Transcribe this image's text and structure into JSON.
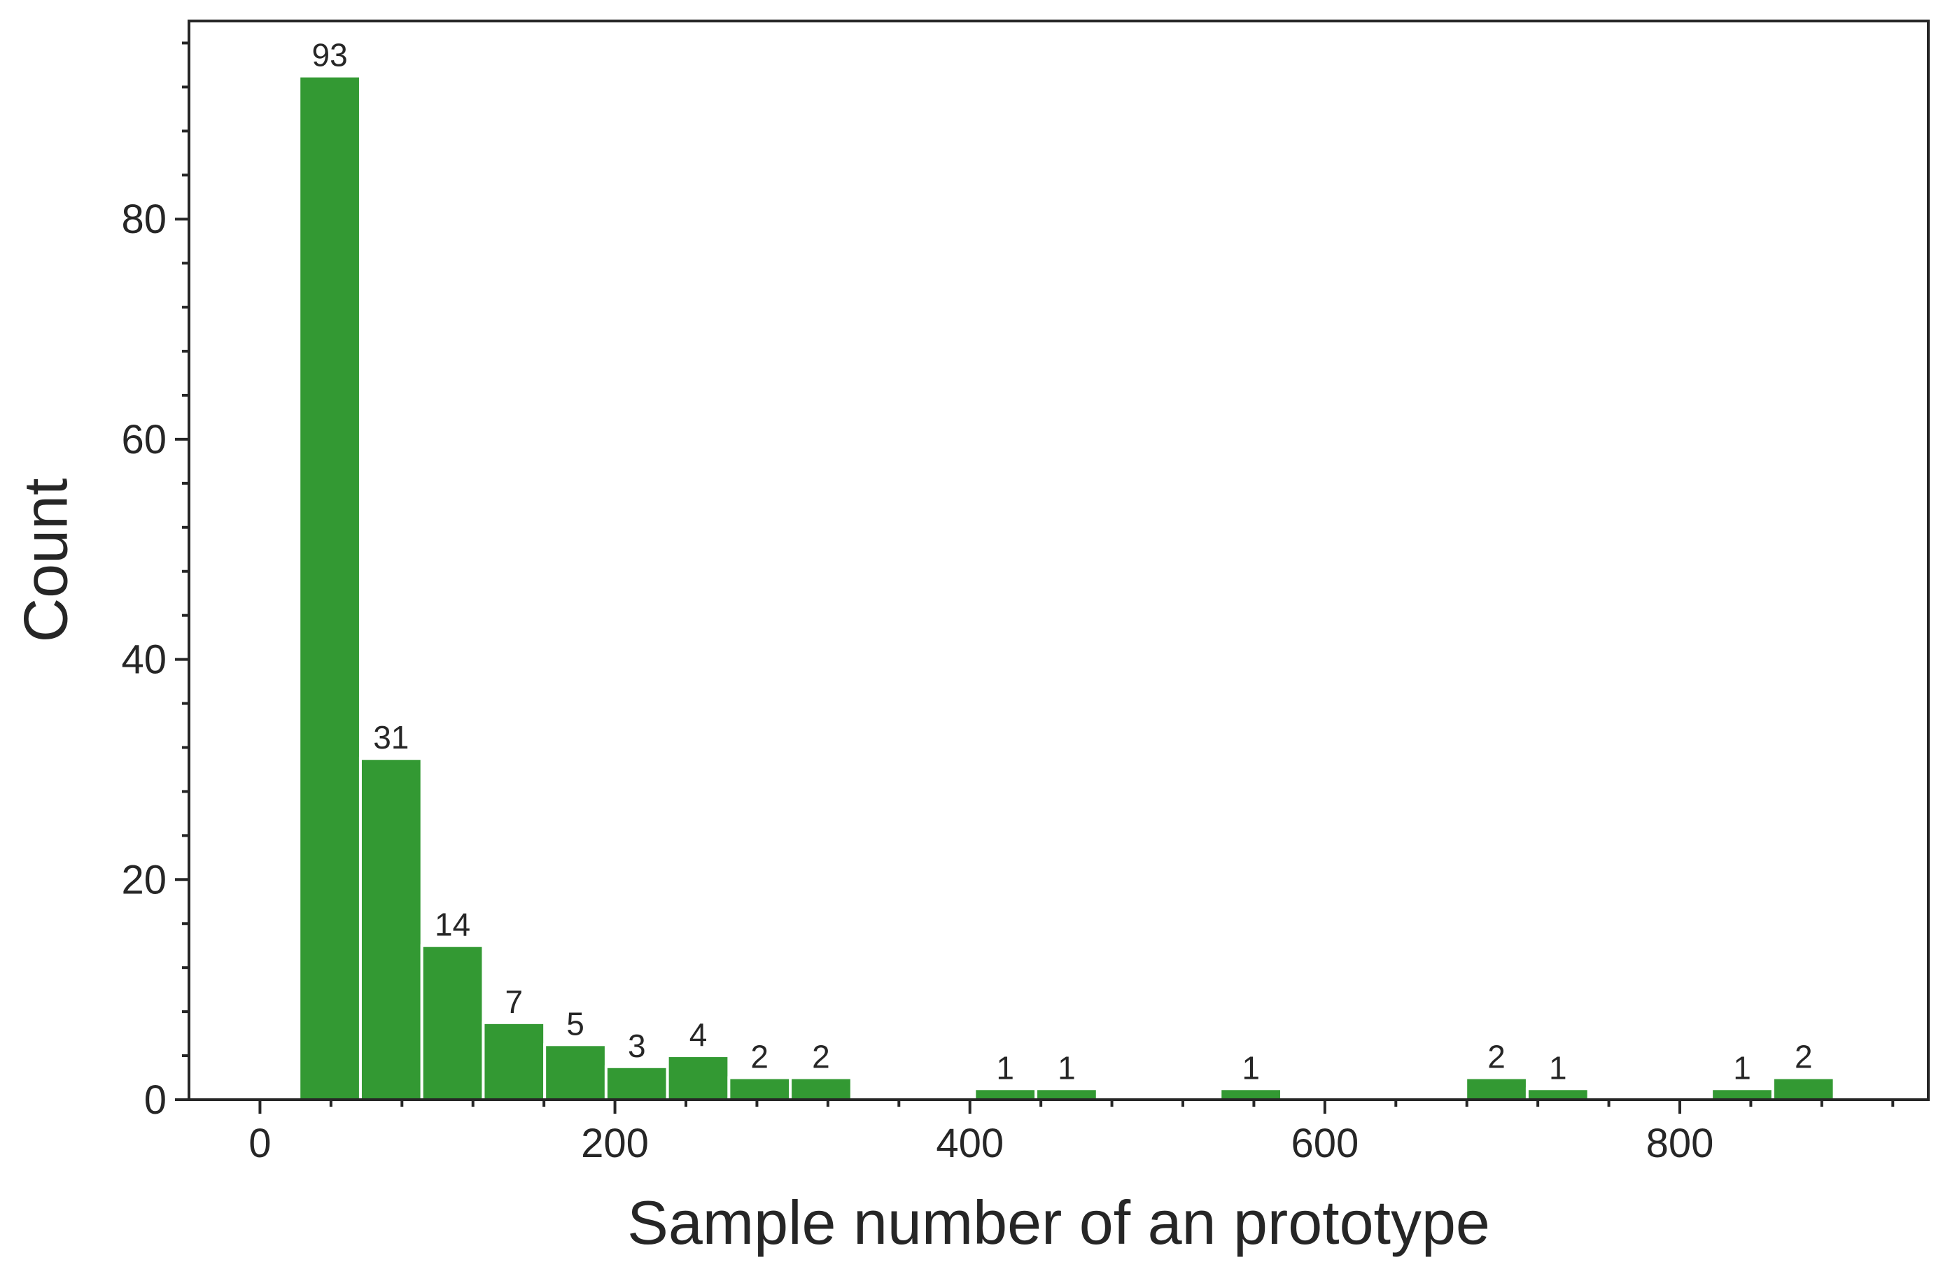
{
  "chart_data": {
    "type": "bar",
    "histogram": true,
    "xlabel": "Sample number of an prototype",
    "ylabel": "Count",
    "xlim": [
      -40,
      940
    ],
    "ylim": [
      0,
      98
    ],
    "x_ticks": [
      0,
      200,
      400,
      600,
      800
    ],
    "y_ticks": [
      0,
      20,
      40,
      60,
      80
    ],
    "bar_color": "#339933",
    "bin_width": 34.6,
    "bars": [
      {
        "x_start": 22,
        "value": 93,
        "label": "93"
      },
      {
        "x_start": 56.6,
        "value": 31,
        "label": "31"
      },
      {
        "x_start": 91.2,
        "value": 14,
        "label": "14"
      },
      {
        "x_start": 125.8,
        "value": 7,
        "label": "7"
      },
      {
        "x_start": 160.4,
        "value": 5,
        "label": "5"
      },
      {
        "x_start": 195,
        "value": 3,
        "label": "3"
      },
      {
        "x_start": 229.6,
        "value": 4,
        "label": "4"
      },
      {
        "x_start": 264.2,
        "value": 2,
        "label": "2"
      },
      {
        "x_start": 298.8,
        "value": 2,
        "label": "2"
      },
      {
        "x_start": 402.6,
        "value": 1,
        "label": "1"
      },
      {
        "x_start": 437.2,
        "value": 1,
        "label": "1"
      },
      {
        "x_start": 541,
        "value": 1,
        "label": "1"
      },
      {
        "x_start": 679.4,
        "value": 2,
        "label": "2"
      },
      {
        "x_start": 714,
        "value": 1,
        "label": "1"
      },
      {
        "x_start": 817.8,
        "value": 1,
        "label": "1"
      },
      {
        "x_start": 852.4,
        "value": 2,
        "label": "2"
      }
    ],
    "grid": false,
    "legend": "none"
  }
}
